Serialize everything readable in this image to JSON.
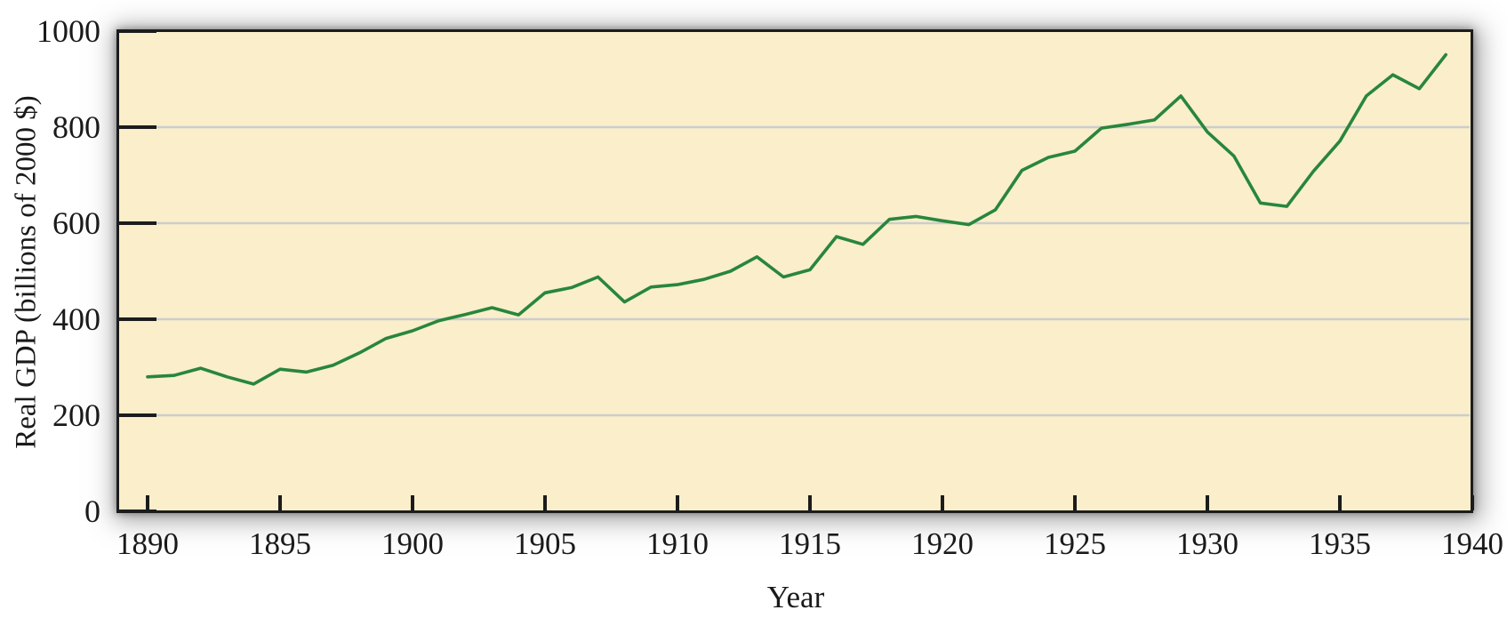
{
  "chart_data": {
    "type": "line",
    "title": "",
    "xlabel": "Year",
    "ylabel": "Real GDP (billions of  2000 $)",
    "x": [
      1890,
      1891,
      1892,
      1893,
      1894,
      1895,
      1896,
      1897,
      1898,
      1899,
      1900,
      1901,
      1902,
      1903,
      1904,
      1905,
      1906,
      1907,
      1908,
      1909,
      1910,
      1911,
      1912,
      1913,
      1914,
      1915,
      1916,
      1917,
      1918,
      1919,
      1920,
      1921,
      1922,
      1923,
      1924,
      1925,
      1926,
      1927,
      1928,
      1929,
      1930,
      1931,
      1932,
      1933,
      1934,
      1935,
      1936,
      1937,
      1938,
      1939
    ],
    "series": [
      {
        "name": "Real GDP",
        "values": [
          280,
          283,
          298,
          280,
          265,
          296,
          290,
          304,
          330,
          360,
          376,
          397,
          410,
          424,
          409,
          455,
          466,
          488,
          436,
          467,
          472,
          483,
          500,
          530,
          488,
          503,
          572,
          556,
          608,
          614,
          605,
          597,
          628,
          710,
          737,
          750,
          798,
          806,
          815,
          865,
          790,
          740,
          642,
          635,
          708,
          771,
          865,
          909,
          880,
          951
        ]
      }
    ],
    "x_ticks": [
      1890,
      1895,
      1900,
      1905,
      1910,
      1915,
      1920,
      1925,
      1930,
      1935,
      1940
    ],
    "y_ticks": [
      0,
      200,
      400,
      600,
      800,
      1000
    ],
    "xlim": [
      1890,
      1940
    ],
    "ylim": [
      0,
      1000
    ],
    "grid": "horizontal gridlines at 200,400,600,800",
    "legend": "none",
    "colors": {
      "line": "#28863C",
      "plot_background": "#FAEECB",
      "gridline": "#CCCCCC",
      "frame": "#1C1C1C",
      "text": "#1A1A1A"
    }
  }
}
